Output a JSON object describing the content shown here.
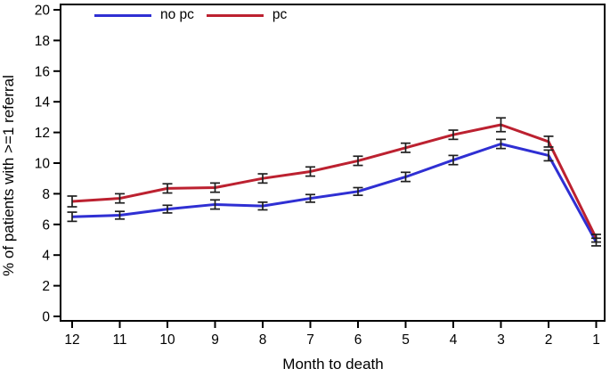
{
  "figure": {
    "background": "#ffffff",
    "frame_color": "#000000",
    "error_bar_color": "#1f1f1f"
  },
  "chart_data": {
    "type": "line",
    "title": "",
    "xlabel": "Month to death",
    "ylabel": "% of patients with >=1 referral",
    "x": [
      12,
      11,
      10,
      9,
      8,
      7,
      6,
      5,
      4,
      3,
      2,
      1
    ],
    "x_axis_reversed": true,
    "ylim": [
      0,
      20
    ],
    "yticks": [
      0,
      2,
      4,
      6,
      8,
      10,
      12,
      14,
      16,
      18,
      20
    ],
    "grid": false,
    "legend_position": "top-inside-left",
    "error_bars": true,
    "series": [
      {
        "name": "no pc",
        "color": "#2f2fd3",
        "values": [
          6.5,
          6.6,
          7.0,
          7.3,
          7.2,
          7.7,
          8.15,
          9.1,
          10.2,
          11.25,
          10.5,
          4.85
        ],
        "errors": [
          0.3,
          0.25,
          0.25,
          0.3,
          0.25,
          0.25,
          0.25,
          0.3,
          0.3,
          0.3,
          0.35,
          0.25
        ]
      },
      {
        "name": "pc",
        "color": "#bc2130",
        "values": [
          7.5,
          7.7,
          8.35,
          8.4,
          9.0,
          9.45,
          10.15,
          11.0,
          11.85,
          12.5,
          11.4,
          5.1
        ],
        "errors": [
          0.35,
          0.3,
          0.3,
          0.3,
          0.3,
          0.3,
          0.3,
          0.3,
          0.3,
          0.45,
          0.35,
          0.25
        ]
      }
    ]
  }
}
